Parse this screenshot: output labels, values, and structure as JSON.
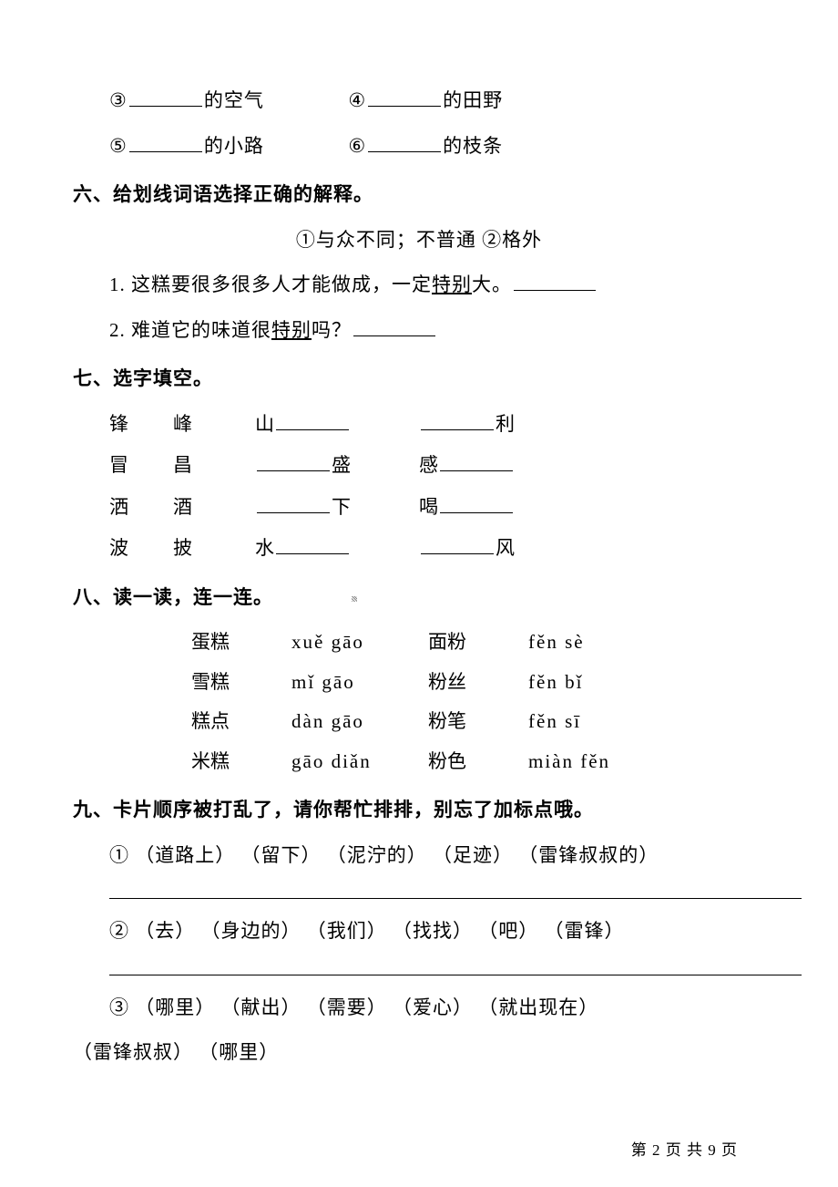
{
  "fill": {
    "items": [
      {
        "num": "③",
        "tail": "的空气",
        "pair_num": "④",
        "pair_tail": "的田野"
      },
      {
        "num": "⑤",
        "tail": "的小路",
        "pair_num": "⑥",
        "pair_tail": "的枝条"
      }
    ]
  },
  "section6": {
    "heading": "六、给划线词语选择正确的解释。",
    "options": "①与众不同；不普通    ②格外",
    "q1_pre": "1. 这糕要很多很多人才能做成，一定",
    "q1_under": "特别",
    "q1_post": "大。",
    "q2_pre": "2. 难道它的味道很",
    "q2_under": "特别",
    "q2_post": "吗？"
  },
  "section7": {
    "heading": "七、选字填空。",
    "rows": [
      {
        "a": "锋",
        "b": "峰",
        "left_pre": "山",
        "left_post": "",
        "right_pre": "",
        "right_post": "利"
      },
      {
        "a": "冒",
        "b": "昌",
        "left_pre": "",
        "left_post": "盛",
        "right_pre": "感",
        "right_post": ""
      },
      {
        "a": "洒",
        "b": "酒",
        "left_pre": "",
        "left_post": "下",
        "right_pre": "喝",
        "right_post": ""
      },
      {
        "a": "波",
        "b": "披",
        "left_pre": "水",
        "left_post": "",
        "right_pre": "",
        "right_post": "风"
      }
    ]
  },
  "section8": {
    "heading": "八、读一读，连一连。",
    "rows": [
      {
        "w1": "蛋糕",
        "p1": "xuě gāo",
        "w2": "面粉",
        "p2": "fěn sè"
      },
      {
        "w1": "雪糕",
        "p1": "mǐ gāo",
        "w2": "粉丝",
        "p2": "fěn bǐ"
      },
      {
        "w1": "糕点",
        "p1": "dàn gāo",
        "w2": "粉笔",
        "p2": "fěn sī"
      },
      {
        "w1": "米糕",
        "p1": "gāo diǎn",
        "w2": "粉色",
        "p2": "miàn fěn"
      }
    ]
  },
  "section9": {
    "heading": "九、卡片顺序被打乱了，请你帮忙排排，别忘了加标点哦。",
    "q1": "① （道路上）  （留下）  （泥泞的）  （足迹）  （雷锋叔叔的）",
    "q2": "② （去）  （身边的）  （我们）  （找找）  （吧）  （雷锋）",
    "q3a": "③ （哪里）    （献出）    （需要）    （爱心）    （就出现在）",
    "q3b": "（雷锋叔叔）  （哪里）"
  },
  "footer": {
    "page_pre": "第 ",
    "page_mid": " 页 共 ",
    "page_post": " 页",
    "current": "2",
    "total": "9"
  }
}
